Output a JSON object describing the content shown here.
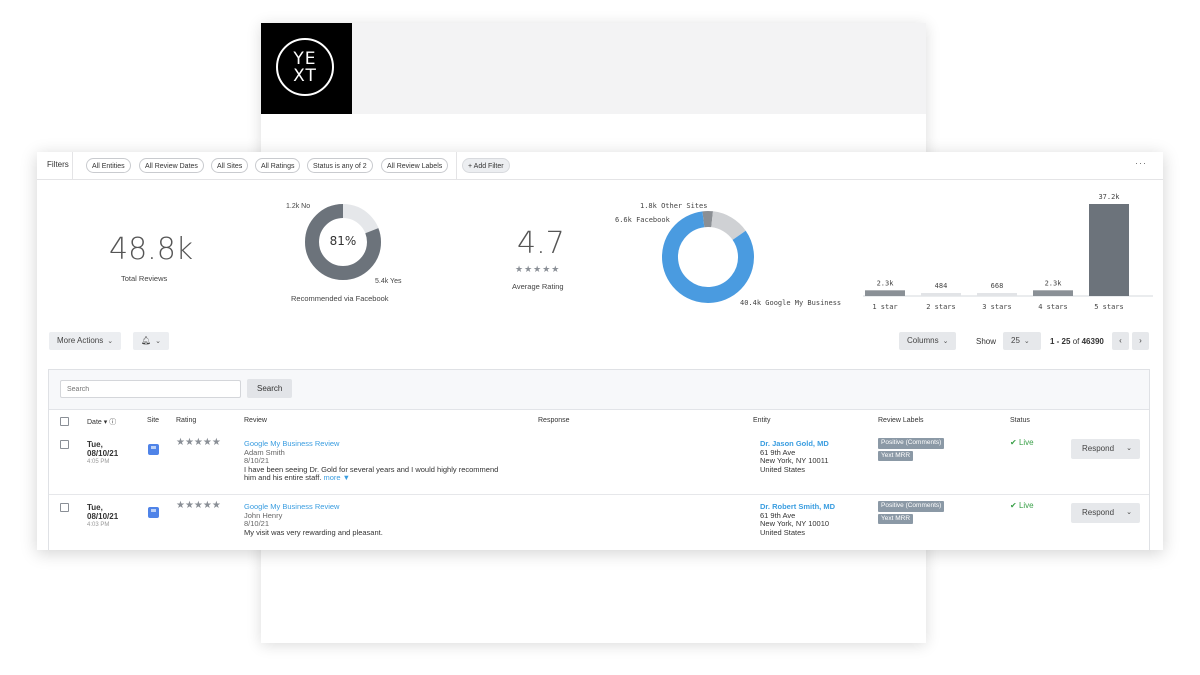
{
  "logo": {
    "top": "YE",
    "bottom": "XT"
  },
  "filters": {
    "label": "Filters",
    "chips": [
      "All Entities",
      "All Review Dates",
      "All Sites",
      "All Ratings",
      "Status is any of 2",
      "All Review Labels"
    ],
    "add": "+ Add Filter",
    "more": "···"
  },
  "stats": {
    "total": {
      "value": "48.8k",
      "label": "Total Reviews"
    },
    "recommend": {
      "percent": "81%",
      "yes_fraction": 0.81,
      "no": "1.2k No",
      "yes": "5.4k Yes",
      "label": "Recommended via Facebook"
    },
    "rating": {
      "value": "4.7",
      "stars": "★★★★★",
      "label": "Average Rating"
    },
    "sites": {
      "labels": [
        "1.8k Other Sites",
        "6.6k Facebook",
        "40.4k Google My Business"
      ],
      "values": [
        1.8,
        6.6,
        40.4
      ],
      "colors": [
        "#8b8f94",
        "#cfd1d4",
        "#4a9be0"
      ]
    }
  },
  "chart_data": {
    "type": "bar",
    "categories": [
      "1 star",
      "2 stars",
      "3 stars",
      "4 stars",
      "5 stars"
    ],
    "values": [
      2300,
      484,
      668,
      2300,
      37200
    ],
    "labels": [
      "2.3k",
      "484",
      "668",
      "2.3k",
      "37.2k"
    ]
  },
  "actions": {
    "more_actions": "More Actions",
    "columns": "Columns",
    "show": "Show",
    "page_size": "25",
    "range": "1 - 25",
    "of": "of",
    "total": "46390",
    "prev": "‹",
    "next": "›"
  },
  "search": {
    "placeholder": "Search",
    "button": "Search"
  },
  "table": {
    "headers": {
      "date": "Date",
      "site": "Site",
      "rating": "Rating",
      "review": "Review",
      "response": "Response",
      "entity": "Entity",
      "labels": "Review Labels",
      "status": "Status"
    },
    "rows": [
      {
        "day": "Tue,",
        "date": "08/10/21",
        "time": "4:05 PM",
        "stars": "★★★★★",
        "title": "Google My Business Review",
        "author": "Adam Smith",
        "review_date": "8/10/21",
        "text1": "I have been seeing Dr. Gold for several years and I would highly recommend",
        "text2": "him and his entire staff.",
        "more": "more ▼",
        "entity_name": "Dr. Jason Gold, MD",
        "addr1": "61 9th Ave",
        "addr2": "New York, NY 10011",
        "addr3": "United States",
        "labels": [
          "Positive (Comments)",
          "Yext MRR"
        ],
        "status": "Live",
        "respond": "Respond"
      },
      {
        "day": "Tue,",
        "date": "08/10/21",
        "time": "4:03 PM",
        "stars": "★★★★★",
        "title": "Google My Business Review",
        "author": "John Henry",
        "review_date": "8/10/21",
        "text1": "My visit was very rewarding and pleasant.",
        "text2": "",
        "more": "",
        "entity_name": "Dr. Robert Smith, MD",
        "addr1": "61 9th Ave",
        "addr2": "New York, NY 10010",
        "addr3": "United States",
        "labels": [
          "Positive (Comments)",
          "Yext MRR"
        ],
        "status": "Live",
        "respond": "Respond"
      }
    ]
  }
}
